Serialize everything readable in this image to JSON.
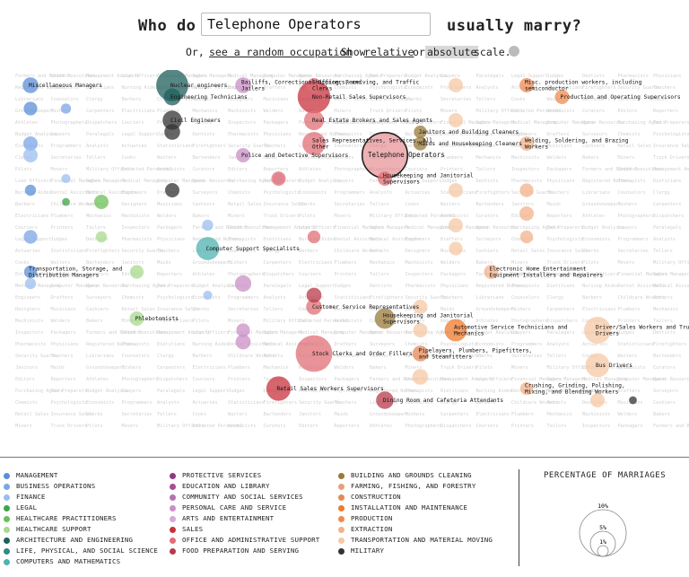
{
  "header": {
    "prefix": "Who do",
    "occupation_value": "Telephone Operators",
    "suffix": "usually marry?"
  },
  "subline": {
    "or": "Or,",
    "random_link": "see a random occupation",
    "show": ". Show",
    "relative_link": "relative",
    "or2": "or",
    "absolute_button": "absolute",
    "scale": "scale."
  },
  "legend": {
    "title": "PERCENTAGE OF MARRIAGES",
    "scale_labels": [
      "10%",
      "5%",
      "1%"
    ],
    "categories": [
      {
        "name": "MANAGEMENT",
        "color": "#5b8fd8"
      },
      {
        "name": "BUSINESS OPERATIONS",
        "color": "#7aa6e6"
      },
      {
        "name": "FINANCE",
        "color": "#9cbdf0"
      },
      {
        "name": "LEGAL",
        "color": "#3fa34d"
      },
      {
        "name": "HEALTHCARE PRACTITIONERS",
        "color": "#6cbf57"
      },
      {
        "name": "HEALTHCARE SUPPORT",
        "color": "#a7d98e"
      },
      {
        "name": "ARCHITECTURE AND ENGINEERING",
        "color": "#1f5f5c"
      },
      {
        "name": "LIFE, PHYSICAL, AND SOCIAL SCIENCE",
        "color": "#2e8c87"
      },
      {
        "name": "COMPUTERS AND MATHEMATICS",
        "color": "#4fb3b0"
      },
      {
        "name": "PROTECTIVE SERVICES",
        "color": "#8e3b7e"
      },
      {
        "name": "EDUCATION AND LIBRARY",
        "color": "#a44f96"
      },
      {
        "name": "COMMUNITY AND SOCIAL SERVICES",
        "color": "#b673b0"
      },
      {
        "name": "PERSONAL CARE AND SERVICE",
        "color": "#c98fc6"
      },
      {
        "name": "ARTS AND ENTERTAINMENT",
        "color": "#d9a9d5"
      },
      {
        "name": "SALES",
        "color": "#c8323c"
      },
      {
        "name": "OFFICE AND ADMINISTRATIVE SUPPORT",
        "color": "#e06f75"
      },
      {
        "name": "FOOD PREPARATION AND SERVING",
        "color": "#b83a4a"
      },
      {
        "name": "BUILDING AND GROUNDS CLEANING",
        "color": "#9a7a3a"
      },
      {
        "name": "FARMING, FISHING, AND FORESTRY",
        "color": "#e8a07a"
      },
      {
        "name": "CONSTRUCTION",
        "color": "#e58a55"
      },
      {
        "name": "INSTALLATION AND MAINTENANCE",
        "color": "#ed7a2e"
      },
      {
        "name": "PRODUCTION",
        "color": "#f08a50"
      },
      {
        "name": "EXTRACTION",
        "color": "#f3b08a"
      },
      {
        "name": "TRANSPORTATION AND MATERIAL MOVING",
        "color": "#f6c8a6"
      },
      {
        "name": "MILITARY",
        "color": "#333333"
      }
    ]
  },
  "chart_data": {
    "type": "scatter",
    "selected": "Telephone Operators",
    "background_labels": [
      "Farmers and Ranchers",
      "Chief Executives",
      "Management Analysts",
      "Loan Officers",
      "Financial Managers",
      "Sales Managers",
      "Medical Managers",
      "Computer Managers",
      "Human Resources",
      "Purchasing Agents",
      "Tax Preparers",
      "Budget Analysts",
      "Lawyers",
      "Paralegals",
      "Legal Support",
      "Judges",
      "Dentists",
      "Pharmacists",
      "Physicians",
      "Registered Nurses",
      "Therapists",
      "Dietitians",
      "Nursing Aides",
      "Dental Assistants",
      "Medical Assistants",
      "Engineers",
      "Drafters",
      "Surveyors",
      "Chemists",
      "Psychologists",
      "Economists",
      "Programmers",
      "Analysts",
      "Actuaries",
      "Statisticians",
      "Firefighters",
      "Security Guards",
      "Teachers",
      "Librarians",
      "Counselors",
      "Clergy",
      "Barbers",
      "Childcare Workers",
      "Artists",
      "Designers",
      "Musicians",
      "Cashiers",
      "Retail Sales",
      "Insurance Sales",
      "Clerks",
      "Secretaries",
      "Tellers",
      "Cooks",
      "Waiters",
      "Bartenders",
      "Janitors",
      "Maids",
      "Groundskeepers",
      "Fishers",
      "Carpenters",
      "Electricians",
      "Plumbers",
      "Mechanics",
      "Machinists",
      "Welders",
      "Bakers",
      "Miners",
      "Truck Drivers",
      "Pilots",
      "Movers",
      "Military Officers",
      "Enlisted Personnel",
      "Archivists",
      "Curators",
      "Editors",
      "Reporters",
      "Athletes",
      "Photographers",
      "Dispatchers",
      "Couriers",
      "Printers",
      "Tailors",
      "Inspectors",
      "Packagers"
    ],
    "points": [
      {
        "label": "Miscellaneous Managers",
        "category": "MANAGEMENT",
        "pct": 1.2,
        "col": 0,
        "row": 1
      },
      {
        "label": "",
        "category": "MANAGEMENT",
        "pct": 0.9,
        "col": 0,
        "row": 3
      },
      {
        "label": "",
        "category": "BUSINESS OPERATIONS",
        "pct": 1.0,
        "col": 0,
        "row": 6
      },
      {
        "label": "",
        "category": "FINANCE",
        "pct": 1.0,
        "col": 0,
        "row": 7
      },
      {
        "label": "",
        "category": "MANAGEMENT",
        "pct": 0.6,
        "col": 0,
        "row": 10
      },
      {
        "label": "",
        "category": "BUSINESS OPERATIONS",
        "pct": 0.9,
        "col": 0,
        "row": 14
      },
      {
        "label": "Transportation, Storage, and Distribution Managers",
        "category": "MANAGEMENT",
        "pct": 0.8,
        "col": 0,
        "row": 17
      },
      {
        "label": "",
        "category": "FINANCE",
        "pct": 0.6,
        "col": 0,
        "row": 18
      },
      {
        "label": "",
        "category": "BUSINESS OPERATIONS",
        "pct": 0.5,
        "col": 1,
        "row": 3
      },
      {
        "label": "",
        "category": "FINANCE",
        "pct": 0.4,
        "col": 1,
        "row": 9
      },
      {
        "label": "",
        "category": "LEGAL",
        "pct": 0.3,
        "col": 1,
        "row": 11
      },
      {
        "label": "Nuclear engineers",
        "category": "ARCHITECTURE AND ENGINEERING",
        "pct": 5.0,
        "col": 4,
        "row": 1
      },
      {
        "label": "Engineering Technicians",
        "category": "ARCHITECTURE AND ENGINEERING",
        "pct": 1.4,
        "col": 4,
        "row": 2
      },
      {
        "label": "Civil Engineers",
        "category": "MILITARY",
        "pct": 1.8,
        "col": 4,
        "row": 4
      },
      {
        "label": "",
        "category": "MILITARY",
        "pct": 1.2,
        "col": 4,
        "row": 5
      },
      {
        "label": "",
        "category": "MILITARY",
        "pct": 1.0,
        "col": 4,
        "row": 10
      },
      {
        "label": "",
        "category": "HEALTHCARE PRACTITIONERS",
        "pct": 1.0,
        "col": 2,
        "row": 11
      },
      {
        "label": "",
        "category": "HEALTHCARE SUPPORT",
        "pct": 0.6,
        "col": 2,
        "row": 14
      },
      {
        "label": "",
        "category": "HEALTHCARE SUPPORT",
        "pct": 0.9,
        "col": 3,
        "row": 17
      },
      {
        "label": "Phlebotomists",
        "category": "HEALTHCARE SUPPORT",
        "pct": 1.0,
        "col": 3,
        "row": 21
      },
      {
        "label": "Computer Support Specialists",
        "category": "COMPUTERS AND MATHEMATICS",
        "pct": 2.6,
        "col": 5,
        "row": 15
      },
      {
        "label": "",
        "category": "FINANCE",
        "pct": 0.6,
        "col": 5,
        "row": 13
      },
      {
        "label": "",
        "category": "FINANCE",
        "pct": 0.4,
        "col": 5,
        "row": 19
      },
      {
        "label": "Bailiffs, Correctional Officers, and Jailers",
        "category": "PERSONAL CARE AND SERVICE",
        "pct": 1.2,
        "col": 6,
        "row": 1
      },
      {
        "label": "Police and Detective Supervisors",
        "category": "PERSONAL CARE AND SERVICE",
        "pct": 1.0,
        "col": 6,
        "row": 7
      },
      {
        "label": "",
        "category": "PERSONAL CARE AND SERVICE",
        "pct": 1.3,
        "col": 6,
        "row": 18
      },
      {
        "label": "",
        "category": "PERSONAL CARE AND SERVICE",
        "pct": 1.1,
        "col": 6,
        "row": 23
      },
      {
        "label": "",
        "category": "PERSONAL CARE AND SERVICE",
        "pct": 0.9,
        "col": 6,
        "row": 22
      },
      {
        "label": "",
        "category": "ARTS AND ENTERTAINMENT",
        "pct": 0.6,
        "col": 7,
        "row": 9
      },
      {
        "label": "Non-Retail Sales Supervisors",
        "category": "SALES",
        "pct": 5.2,
        "col": 8,
        "row": 2
      },
      {
        "label": "Real Estate Brokers and Sales Agents",
        "category": "OFFICE AND ADMINISTRATIVE SUPPORT",
        "pct": 1.9,
        "col": 8,
        "row": 4
      },
      {
        "label": "Sales Representatives, Services, All Other",
        "category": "OFFICE AND ADMINISTRATIVE SUPPORT",
        "pct": 2.6,
        "col": 8,
        "row": 6
      },
      {
        "label": "",
        "category": "OFFICE AND ADMINISTRATIVE SUPPORT",
        "pct": 1.0,
        "col": 7,
        "row": 9
      },
      {
        "label": "",
        "category": "OFFICE AND ADMINISTRATIVE SUPPORT",
        "pct": 0.8,
        "col": 8,
        "row": 14
      },
      {
        "label": "Customer Service Representatives",
        "category": "OFFICE AND ADMINISTRATIVE SUPPORT",
        "pct": 1.2,
        "col": 8,
        "row": 20
      },
      {
        "label": "Stock Clerks and Order Fillers",
        "category": "OFFICE AND ADMINISTRATIVE SUPPORT",
        "pct": 6.5,
        "col": 8,
        "row": 24
      },
      {
        "label": "Retail Sales Workers Supervisors",
        "category": "SALES",
        "pct": 2.9,
        "col": 7,
        "row": 27
      },
      {
        "label": "",
        "category": "FOOD PREPARATION AND SERVING",
        "pct": 1.1,
        "col": 8,
        "row": 19
      },
      {
        "label": "Shipping, Receiving, and Traffic Clerks",
        "category": "OFFICE AND ADMINISTRATIVE SUPPORT",
        "pct": 1.0,
        "col": 8,
        "row": 1
      },
      {
        "label": "Telephone Operators",
        "category": "OFFICE AND ADMINISTRATIVE SUPPORT",
        "pct": 10.0,
        "col": 10,
        "row": 7
      },
      {
        "label": "Housekeeping and Janitorial Supervisors",
        "category": "OFFICE AND ADMINISTRATIVE SUPPORT",
        "pct": 1.0,
        "col": 10,
        "row": 9
      },
      {
        "label": "Janitors and Building Cleaners",
        "category": "BUILDING AND GROUNDS CLEANING",
        "pct": 0.8,
        "col": 11,
        "row": 5
      },
      {
        "label": "Maids and Housekeeping Cleaners",
        "category": "BUILDING AND GROUNDS CLEANING",
        "pct": 0.9,
        "col": 11,
        "row": 6
      },
      {
        "label": "Housekeeping and Janitorial Supervisors",
        "category": "BUILDING AND GROUNDS CLEANING",
        "pct": 2.0,
        "col": 10,
        "row": 21
      },
      {
        "label": "Dining Room and Cafeteria Attendants",
        "category": "FOOD PREPARATION AND SERVING",
        "pct": 1.5,
        "col": 10,
        "row": 28
      },
      {
        "label": "Pipelayers, Plumbers, Pipefitters, and Steamfitters",
        "category": "CONSTRUCTION",
        "pct": 1.2,
        "col": 11,
        "row": 24
      },
      {
        "label": "Automotive Service Technicians and Mechanics",
        "category": "INSTALLATION AND MAINTENANCE",
        "pct": 2.4,
        "col": 12,
        "row": 22
      },
      {
        "label": "Electronic Home Entertainment Equipment Installers and Repairers",
        "category": "EXTRACTION",
        "pct": 1.0,
        "col": 13,
        "row": 17
      },
      {
        "label": "Misc. production workers, including semiconductor",
        "category": "PRODUCTION",
        "pct": 1.0,
        "col": 14,
        "row": 1
      },
      {
        "label": "Production and Operating Supervisors",
        "category": "PRODUCTION",
        "pct": 1.0,
        "col": 15,
        "row": 2
      },
      {
        "label": "Welding, Soldering, and Brazing Workers",
        "category": "EXTRACTION",
        "pct": 1.0,
        "col": 14,
        "row": 6
      },
      {
        "label": "Driver/Sales Workers and Truck Drivers",
        "category": "TRANSPORTATION AND MATERIAL MOVING",
        "pct": 3.5,
        "col": 16,
        "row": 22
      },
      {
        "label": "Bus Drivers",
        "category": "TRANSPORTATION AND MATERIAL MOVING",
        "pct": 2.8,
        "col": 16,
        "row": 25
      },
      {
        "label": "Crushing, Grinding, Polishing, Mixing, and Blending Workers",
        "category": "EXTRACTION",
        "pct": 0.8,
        "col": 14,
        "row": 27
      },
      {
        "label": "",
        "category": "EXTRACTION",
        "pct": 0.9,
        "col": 14,
        "row": 10
      },
      {
        "label": "",
        "category": "EXTRACTION",
        "pct": 1.0,
        "col": 14,
        "row": 12
      },
      {
        "label": "",
        "category": "EXTRACTION",
        "pct": 0.8,
        "col": 14,
        "row": 14
      },
      {
        "label": "",
        "category": "TRANSPORTATION AND MATERIAL MOVING",
        "pct": 1.0,
        "col": 12,
        "row": 1
      },
      {
        "label": "",
        "category": "TRANSPORTATION AND MATERIAL MOVING",
        "pct": 1.0,
        "col": 12,
        "row": 4
      },
      {
        "label": "",
        "category": "TRANSPORTATION AND MATERIAL MOVING",
        "pct": 1.0,
        "col": 12,
        "row": 10
      },
      {
        "label": "",
        "category": "TRANSPORTATION AND MATERIAL MOVING",
        "pct": 1.0,
        "col": 12,
        "row": 13
      },
      {
        "label": "",
        "category": "TRANSPORTATION AND MATERIAL MOVING",
        "pct": 0.9,
        "col": 12,
        "row": 15
      },
      {
        "label": "",
        "category": "TRANSPORTATION AND MATERIAL MOVING",
        "pct": 1.0,
        "col": 11,
        "row": 20
      },
      {
        "label": "",
        "category": "TRANSPORTATION AND MATERIAL MOVING",
        "pct": 1.0,
        "col": 11,
        "row": 22
      },
      {
        "label": "",
        "category": "TRANSPORTATION AND MATERIAL MOVING",
        "pct": 1.2,
        "col": 11,
        "row": 26
      },
      {
        "label": "",
        "category": "TRANSPORTATION AND MATERIAL MOVING",
        "pct": 1.0,
        "col": 16,
        "row": 28
      },
      {
        "label": "",
        "category": "MILITARY",
        "pct": 0.3,
        "col": 17,
        "row": 28
      }
    ]
  }
}
